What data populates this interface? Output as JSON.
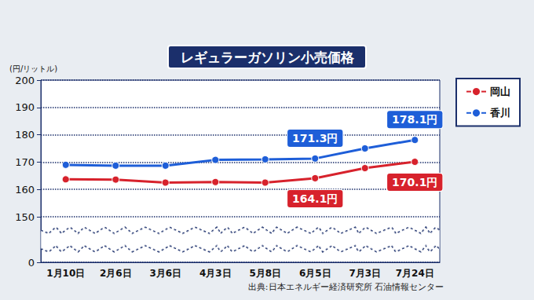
{
  "chart_data": {
    "type": "line",
    "title": "レギュラーガソリン小売価格",
    "y_label": "(円/リットル)",
    "source": "出典:日本エネルギー経済研究所 石油情報センター",
    "categories": [
      "1月10日",
      "2月6日",
      "3月6日",
      "4月3日",
      "5月8日",
      "6月5日",
      "7月3日",
      "7月24日"
    ],
    "series": [
      {
        "name": "岡山",
        "color": "#d7222c",
        "marker": "circle",
        "values": [
          163.7,
          163.6,
          162.5,
          162.7,
          162.5,
          164.1,
          167.8,
          170.1
        ],
        "value_labels": [
          null,
          null,
          null,
          null,
          null,
          "164.1円",
          null,
          "170.1円"
        ]
      },
      {
        "name": "香川",
        "color": "#1e5ed8",
        "marker": "circle",
        "values": [
          169.0,
          168.7,
          168.7,
          170.8,
          171.0,
          171.3,
          175.0,
          178.1
        ],
        "value_labels": [
          null,
          null,
          null,
          null,
          null,
          "171.3円",
          null,
          "178.1円"
        ]
      }
    ],
    "ylim": [
      0,
      200
    ],
    "yticks": [
      0,
      150,
      160,
      170,
      180,
      190,
      200
    ],
    "grid": true,
    "legend": "right"
  }
}
